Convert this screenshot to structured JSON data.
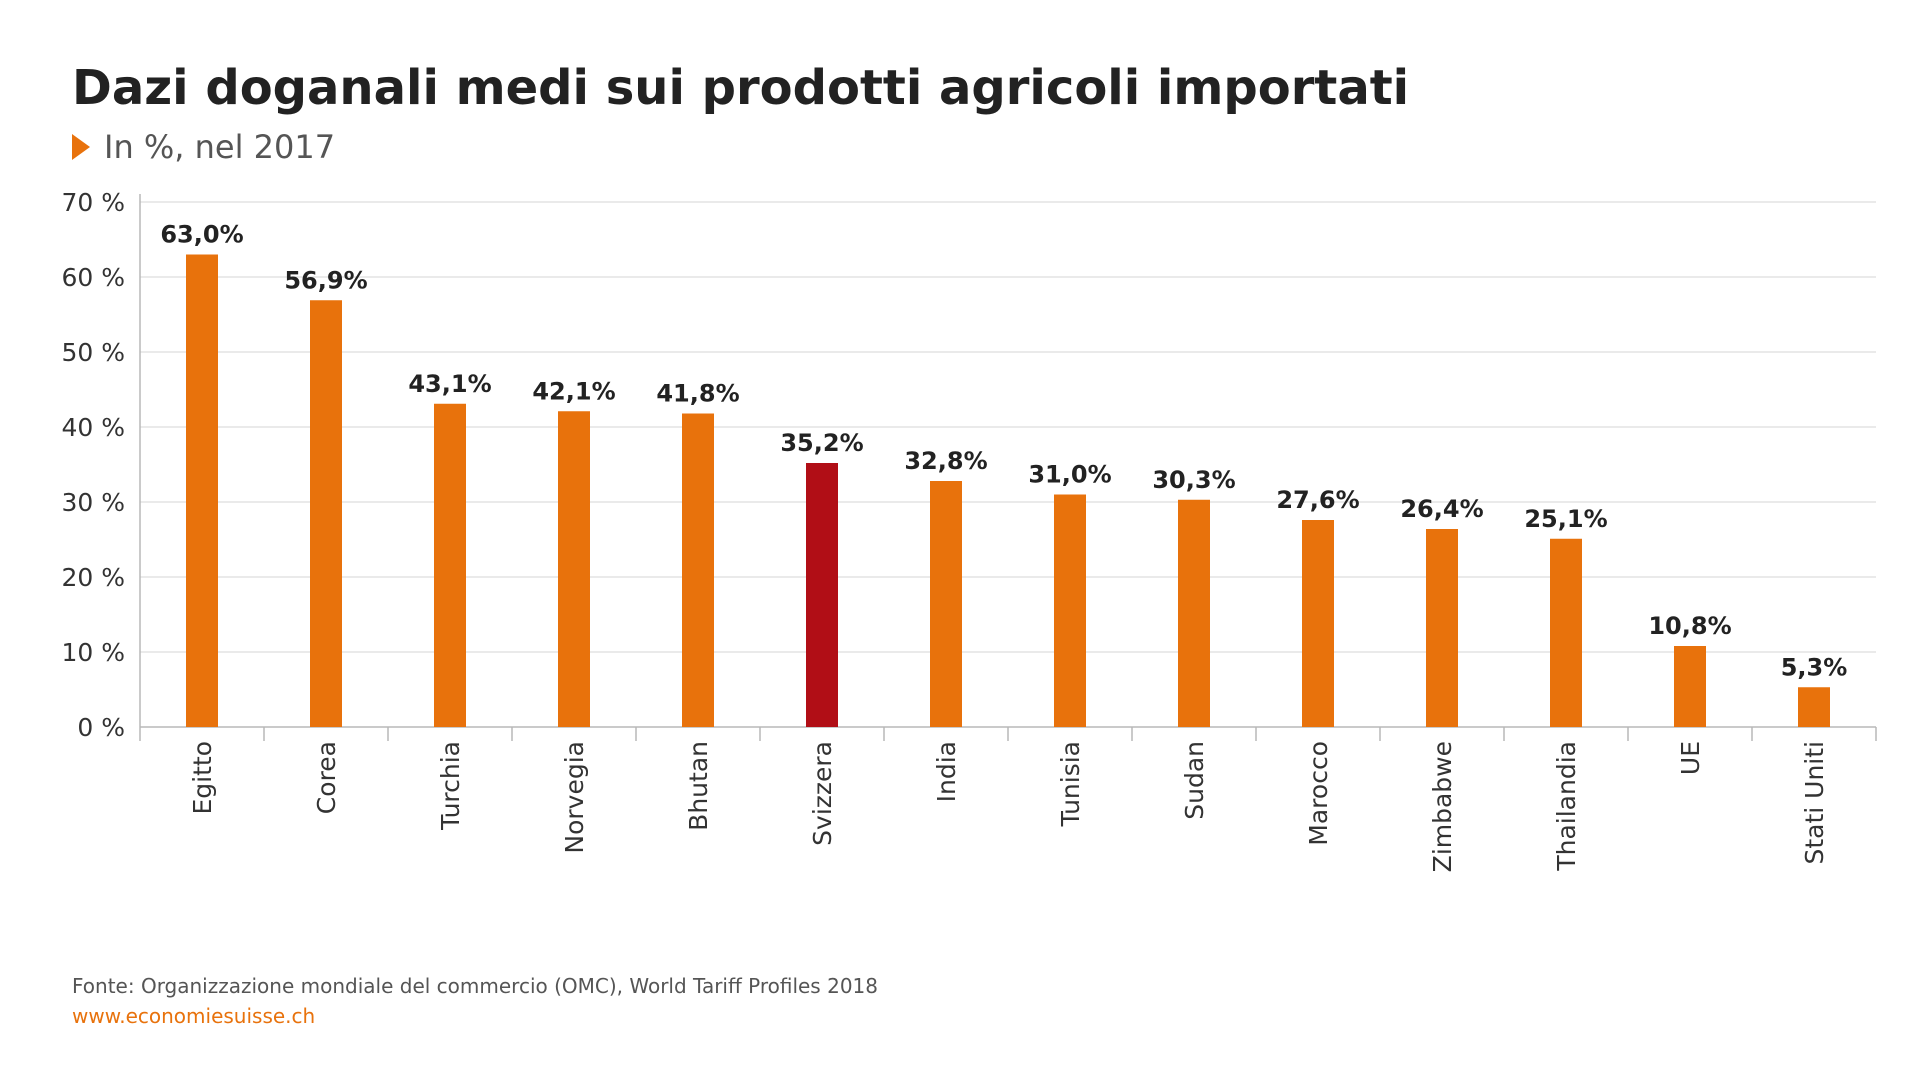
{
  "header": {
    "title": "Dazi doganali medi sui prodotti agricoli importati",
    "subtitle": "In %, nel 2017"
  },
  "footer": {
    "source": "Fonte: Organizzazione mondiale del commercio (OMC), World Tariff Profiles 2018",
    "website": "www.economiesuisse.ch"
  },
  "colors": {
    "bar": "#e8720c",
    "highlight_bar": "#b10e16",
    "grid": "#e3e3e3",
    "axis": "#b8b8b8",
    "text": "#222222",
    "accent": "#e8720c"
  },
  "chart_data": {
    "type": "bar",
    "title": "Dazi doganali medi sui prodotti agricoli importati",
    "subtitle": "In %, nel 2017",
    "xlabel": "",
    "ylabel": "",
    "ylim": [
      0,
      70
    ],
    "yticks": [
      0,
      10,
      20,
      30,
      40,
      50,
      60,
      70
    ],
    "ytick_labels": [
      "0 %",
      "10 %",
      "20 %",
      "30 %",
      "40 %",
      "50 %",
      "60 %",
      "70 %"
    ],
    "grid": true,
    "categories": [
      "Egitto",
      "Corea",
      "Turchia",
      "Norvegia",
      "Bhutan",
      "Svizzera",
      "India",
      "Tunisia",
      "Sudan",
      "Marocco",
      "Zimbabwe",
      "Thailandia",
      "UE",
      "Stati Uniti"
    ],
    "values": [
      63.0,
      56.9,
      43.1,
      42.1,
      41.8,
      35.2,
      32.8,
      31.0,
      30.3,
      27.6,
      26.4,
      25.1,
      10.8,
      5.3
    ],
    "value_labels": [
      "63,0%",
      "56,9%",
      "43,1%",
      "42,1%",
      "41,8%",
      "35,2%",
      "32,8%",
      "31,0%",
      "30,3%",
      "27,6%",
      "26,4%",
      "25,1%",
      "10,8%",
      "5,3%"
    ],
    "highlight": "Svizzera"
  }
}
